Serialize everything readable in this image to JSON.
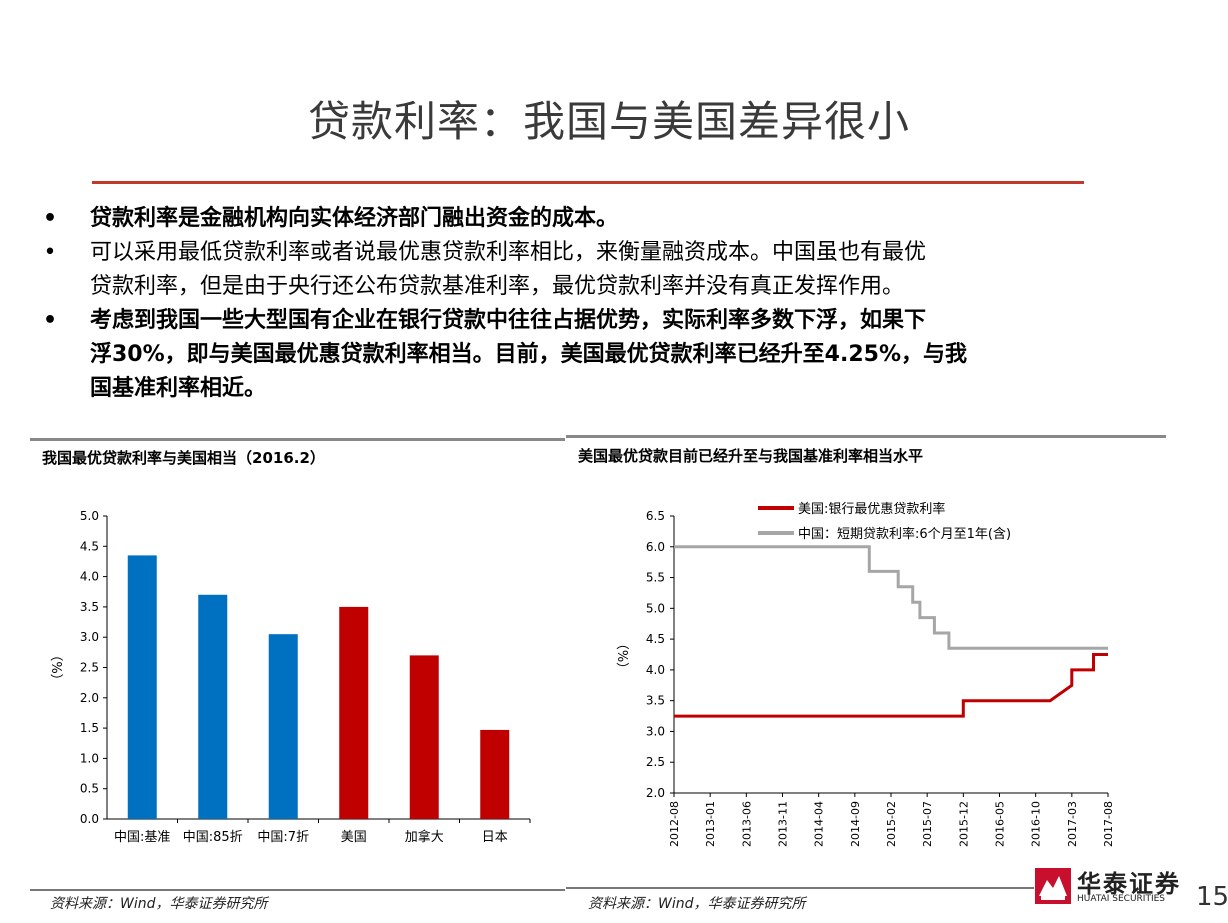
{
  "slide": {
    "title": "贷款利率：我国与美国差异很小",
    "page_number": "15"
  },
  "bullets": [
    {
      "symbol": "•",
      "lines": [
        "贷款利率是金融机构向实体经济部门融出资金的成本。"
      ],
      "bold": true
    },
    {
      "symbol": "•",
      "lines": [
        "可以采用最低贷款利率或者说最优惠贷款利率相比，来衡量融资成本。中国虽也有最优",
        "贷款利率，但是由于央行还公布贷款基准利率，最优贷款利率并没有真正发挥作用。"
      ],
      "bold": false
    },
    {
      "symbol": "•",
      "lines": [
        "考虑到我国一些大型国有企业在银行贷款中往往占据优势，实际利率多数下浮，如果下",
        "浮30%，即与美国最优惠贷款利率相当。目前，美国最优贷款利率已经升至4.25%，与我",
        "国基准利率相近。"
      ],
      "bold": true
    }
  ],
  "left_panel": {
    "title": "我国最优贷款利率与美国相当（2016.2）",
    "source": "资料来源：Wind，华泰证券研究所"
  },
  "right_panel": {
    "title": "美国最优贷款目前已经升至与我国基准利率相当水平",
    "source": "资料来源：Wind，华泰证券研究所"
  },
  "logo": {
    "name": "华泰证券",
    "sub": "HUATAI SECURITIES"
  },
  "colors": {
    "blue": "#0070c0",
    "red": "#c00000",
    "gray": "#a6a6a6",
    "accent_rule": "#c0392b"
  },
  "chart_data": [
    {
      "type": "bar",
      "title": "我国最优贷款利率与美国相当（2016.2）",
      "ylabel": "（%）",
      "ylim": [
        0,
        5.0
      ],
      "yticks": [
        "5.0",
        "4.5",
        "4.0",
        "3.5",
        "3.0",
        "2.5",
        "2.0",
        "1.5",
        "1.0",
        "0.5",
        "0.0"
      ],
      "categories": [
        "中国:基准",
        "中国:85折",
        "中国:7折",
        "美国",
        "加拿大",
        "日本"
      ],
      "values": [
        4.35,
        3.7,
        3.05,
        3.5,
        2.7,
        1.47
      ],
      "bar_colors": [
        "#0070c0",
        "#0070c0",
        "#0070c0",
        "#c00000",
        "#c00000",
        "#c00000"
      ]
    },
    {
      "type": "line",
      "title": "美国最优贷款目前已经升至与我国基准利率相当水平",
      "ylabel": "（%）",
      "ylim": [
        2.0,
        6.5
      ],
      "yticks": [
        "6.5",
        "6.0",
        "5.5",
        "5.0",
        "4.5",
        "4.0",
        "3.5",
        "3.0",
        "2.5",
        "2.0"
      ],
      "xticks": [
        "2012-08",
        "2013-01",
        "2013-06",
        "2013-11",
        "2014-04",
        "2014-09",
        "2015-02",
        "2015-07",
        "2015-12",
        "2016-05",
        "2016-10",
        "2017-03",
        "2017-08"
      ],
      "series": [
        {
          "name": "美国:银行最优惠贷款利率",
          "color": "#c00000",
          "points": [
            [
              "2012-08",
              3.25
            ],
            [
              "2015-12",
              3.25
            ],
            [
              "2015-12",
              3.5
            ],
            [
              "2016-12",
              3.5
            ],
            [
              "2017-03",
              3.75
            ],
            [
              "2017-03",
              4.0
            ],
            [
              "2017-06",
              4.0
            ],
            [
              "2017-06",
              4.25
            ],
            [
              "2017-08",
              4.25
            ]
          ]
        },
        {
          "name": "中国：短期贷款利率:6个月至1年(含)",
          "color": "#a6a6a6",
          "points": [
            [
              "2012-08",
              6.0
            ],
            [
              "2014-11",
              6.0
            ],
            [
              "2014-11",
              5.6
            ],
            [
              "2015-03",
              5.6
            ],
            [
              "2015-03",
              5.35
            ],
            [
              "2015-05",
              5.35
            ],
            [
              "2015-05",
              5.1
            ],
            [
              "2015-06",
              5.1
            ],
            [
              "2015-06",
              4.85
            ],
            [
              "2015-08",
              4.85
            ],
            [
              "2015-08",
              4.6
            ],
            [
              "2015-10",
              4.6
            ],
            [
              "2015-10",
              4.35
            ],
            [
              "2017-08",
              4.35
            ]
          ]
        }
      ]
    }
  ]
}
